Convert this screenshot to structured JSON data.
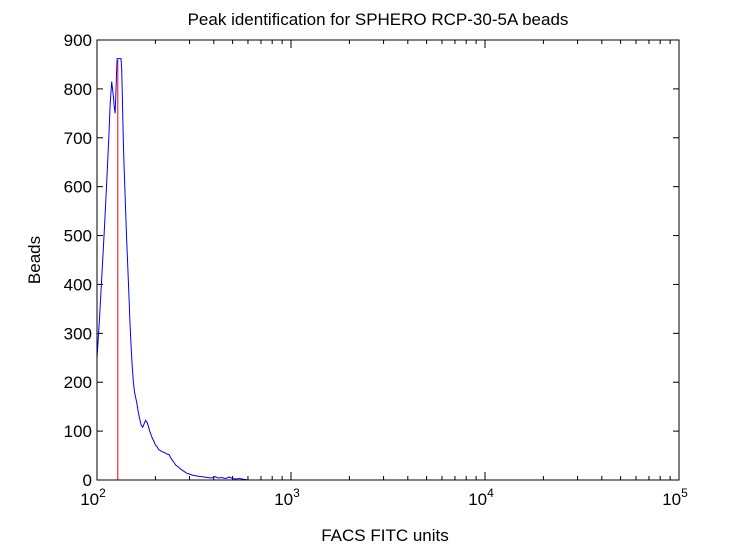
{
  "chart_data": {
    "type": "line",
    "title": "Peak identification for SPHERO RCP-30-5A beads",
    "xlabel": "FACS FITC units",
    "ylabel": "Beads",
    "x_scale": "log",
    "xlim": [
      100,
      100000
    ],
    "ylim": [
      0,
      900
    ],
    "x_ticks": [
      {
        "base": "10",
        "exp": "2",
        "value": 100
      },
      {
        "base": "10",
        "exp": "3",
        "value": 1000
      },
      {
        "base": "10",
        "exp": "4",
        "value": 10000
      },
      {
        "base": "10",
        "exp": "5",
        "value": 100000
      }
    ],
    "y_ticks": [
      "0",
      "100",
      "200",
      "300",
      "400",
      "500",
      "600",
      "700",
      "800",
      "900"
    ],
    "grid": false,
    "series": [
      {
        "color": "#0000ff",
        "x": [
          100,
          103,
          106,
          109,
          112,
          115,
          117,
          119,
          121,
          123,
          124,
          125,
          126,
          127,
          128,
          129,
          130,
          131,
          132,
          133,
          134,
          135,
          136,
          137,
          138,
          140,
          142,
          144,
          146,
          148,
          150,
          152,
          154,
          156,
          158,
          160,
          163,
          166,
          169,
          172,
          175,
          178,
          181,
          184,
          187,
          190,
          193,
          196,
          200,
          204,
          208,
          212,
          216,
          220,
          225,
          230,
          235,
          240,
          245,
          250,
          255,
          260,
          270,
          280,
          290,
          300,
          310,
          320,
          330,
          345,
          360,
          375,
          390,
          405,
          420,
          440,
          460,
          480,
          500,
          520,
          540,
          560,
          580,
          600
        ],
        "y": [
          250,
          330,
          420,
          510,
          600,
          700,
          770,
          815,
          790,
          760,
          750,
          785,
          830,
          862,
          862,
          862,
          862,
          862,
          862,
          862,
          840,
          790,
          730,
          680,
          640,
          570,
          500,
          440,
          380,
          320,
          270,
          230,
          200,
          180,
          170,
          160,
          140,
          125,
          112,
          108,
          115,
          122,
          118,
          110,
          100,
          92,
          85,
          80,
          72,
          68,
          62,
          60,
          58,
          57,
          55,
          53,
          52,
          45,
          40,
          35,
          30,
          28,
          22,
          18,
          14,
          12,
          10,
          9,
          8,
          7,
          6,
          5,
          4,
          7,
          4,
          5,
          3,
          6,
          3,
          2,
          3,
          2,
          1,
          0
        ]
      }
    ],
    "markers": [
      {
        "x": 128,
        "color": "#ff0000"
      }
    ]
  }
}
